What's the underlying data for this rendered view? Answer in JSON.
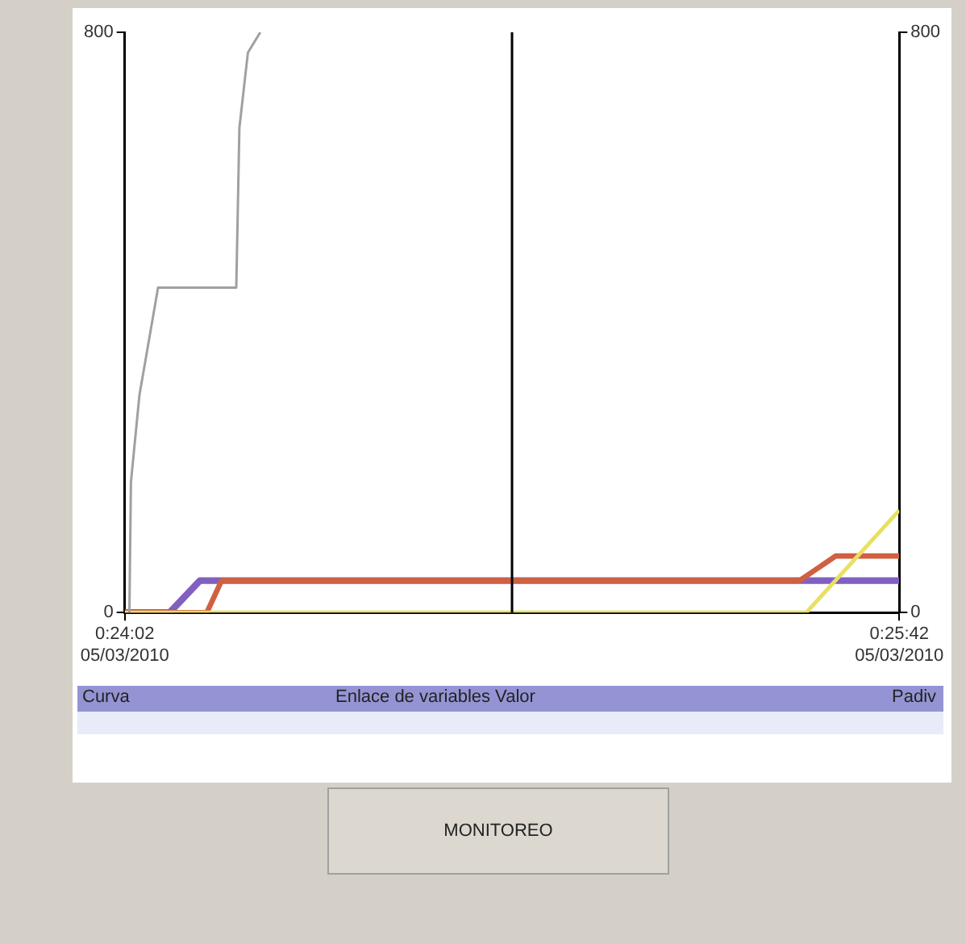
{
  "chart_data": {
    "type": "line",
    "x": [
      "2010-03-05T00:24:02",
      "2010-03-05T00:24:07.8",
      "2010-03-05T00:24:11.7",
      "2010-03-05T00:25:42"
    ],
    "xlim": [
      "2010-03-05T00:24:02",
      "2010-03-05T00:25:42"
    ],
    "xticks": [
      {
        "value": "2010-03-05T00:24:02",
        "label": "0:24:02\n05/03/2010"
      },
      {
        "value": "2010-03-05T00:25:42",
        "label": "0:25:42\n05/03/2010"
      }
    ],
    "ylim": [
      0,
      800
    ],
    "yticks": [
      0,
      800
    ],
    "y2lim": [
      0,
      800
    ],
    "y2ticks": [
      0,
      800
    ],
    "grid": false,
    "legend": false,
    "marker": "none",
    "line_style": "solid",
    "series": [
      {
        "color": "#a0a0a0",
        "x": [
          "2010-03-05T00:24:02.6",
          "2010-03-05T00:24:02.8",
          "2010-03-05T00:24:03.9",
          "2010-03-05T00:24:06.3",
          "2010-03-05T00:24:16.4",
          "2010-03-05T00:24:16.8",
          "2010-03-05T00:24:17.9",
          "2010-03-05T00:24:19.5"
        ],
        "values": [
          0,
          180,
          300,
          448,
          448,
          668,
          772,
          800
        ]
      },
      {
        "color": "#e8e060",
        "x": [
          "2010-03-05T00:24:02",
          "2010-03-05T00:25:30",
          "2010-03-05T00:25:42"
        ],
        "values": [
          0,
          0,
          141
        ]
      },
      {
        "color": "#d06040",
        "x": [
          "2010-03-05T00:24:02",
          "2010-03-05T00:24:12.6",
          "2010-03-05T00:24:14.5",
          "2010-03-05T00:25:29.1",
          "2010-03-05T00:25:33.8",
          "2010-03-05T00:25:42"
        ],
        "values": [
          0,
          0,
          44,
          44,
          78,
          78
        ]
      },
      {
        "color": "#8060c0",
        "values": [
          0,
          0,
          44,
          44
        ]
      }
    ],
    "ref_lines": [
      {
        "axis": "x",
        "value": "2010-03-05T00:24:52",
        "color": "#000000"
      }
    ],
    "annotations": [
      "Curva",
      "Enlace de variables Valor",
      "Padiv",
      "MONITOREO"
    ]
  }
}
